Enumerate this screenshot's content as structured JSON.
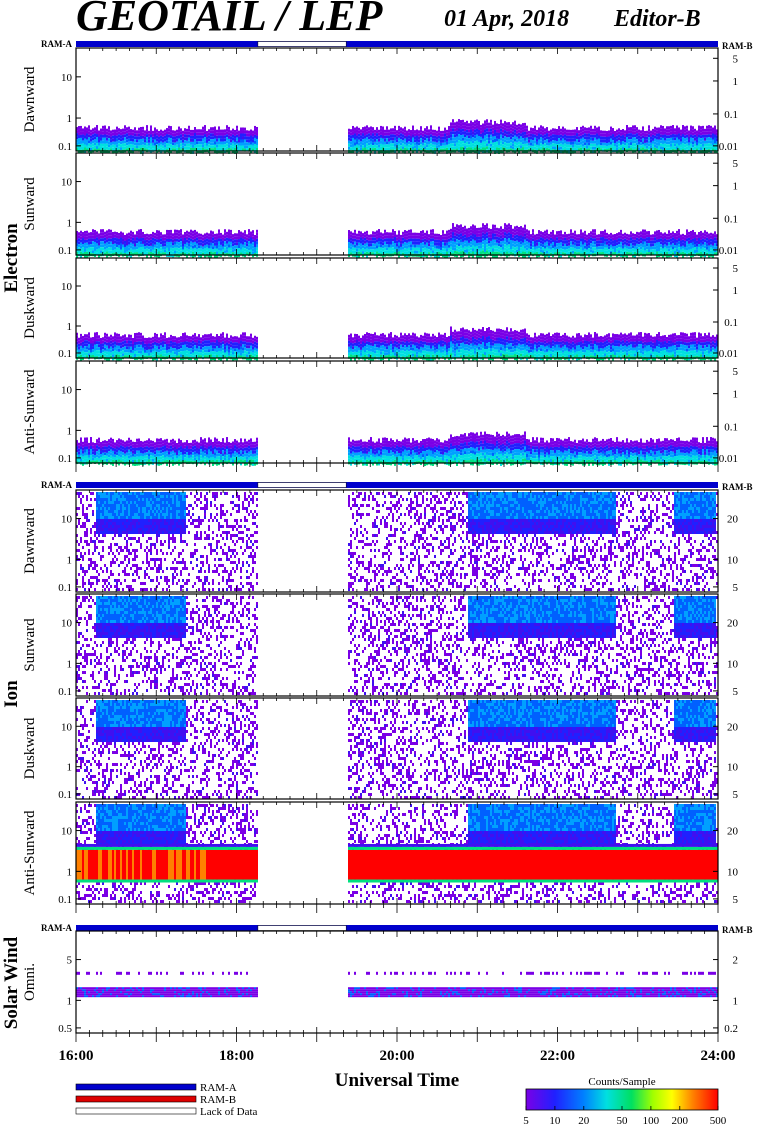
{
  "header": {
    "title": "GEOTAIL / LEP",
    "date": "01 Apr, 2018",
    "editor": "Editor-B"
  },
  "ram_labels": {
    "left": "RAM-A",
    "right": "RAM-B"
  },
  "x_axis": {
    "title": "Universal Time",
    "ticks": [
      "16:00",
      "18:00",
      "20:00",
      "22:00",
      "24:00"
    ]
  },
  "groups": [
    {
      "label": "Electron"
    },
    {
      "label": "Ion"
    },
    {
      "label": "Solar Wind"
    }
  ],
  "legend": {
    "ram_a": "RAM-A",
    "ram_b": "RAM-B",
    "lack": "Lack of Data",
    "colorbar_title": "Counts/Sample",
    "colorbar_ticks": [
      "5",
      "10",
      "20",
      "50",
      "100",
      "200",
      "500"
    ]
  },
  "colors": {
    "ram_a": "#0000cc",
    "ram_b": "#dd0000",
    "lack_fill": "#ffffff"
  },
  "chart_data": {
    "type": "heatmap",
    "time_range": [
      "16:00",
      "24:00"
    ],
    "data_gap": [
      "18:16",
      "19:22"
    ],
    "ram_state": "RAM-A",
    "panels": [
      {
        "group": "Electron",
        "name": "Dawnward",
        "left_ticks": [
          "10",
          "1",
          "0.1"
        ],
        "right_ticks": [
          "5",
          "1",
          "0.1",
          "0.01"
        ],
        "profile": "electron"
      },
      {
        "group": "Electron",
        "name": "Sunward",
        "left_ticks": [
          "10",
          "1",
          "0.1"
        ],
        "right_ticks": [
          "5",
          "1",
          "0.1",
          "0.01"
        ],
        "profile": "electron"
      },
      {
        "group": "Electron",
        "name": "Duskward",
        "left_ticks": [
          "10",
          "1",
          "0.1"
        ],
        "right_ticks": [
          "5",
          "1",
          "0.1",
          "0.01"
        ],
        "profile": "electron"
      },
      {
        "group": "Electron",
        "name": "Anti-Sunward",
        "left_ticks": [
          "10",
          "1",
          "0.1"
        ],
        "right_ticks": [
          "5",
          "1",
          "0.1",
          "0.01"
        ],
        "profile": "electron"
      },
      {
        "group": "Ion",
        "name": "Dawnward",
        "left_ticks": [
          "10",
          "1",
          "0.1"
        ],
        "right_ticks": [
          "20",
          "10",
          "5"
        ],
        "profile": "ion"
      },
      {
        "group": "Ion",
        "name": "Sunward",
        "left_ticks": [
          "10",
          "1",
          "0.1"
        ],
        "right_ticks": [
          "20",
          "10",
          "5"
        ],
        "profile": "ion"
      },
      {
        "group": "Ion",
        "name": "Duskward",
        "left_ticks": [
          "10",
          "1",
          "0.1"
        ],
        "right_ticks": [
          "20",
          "10",
          "5"
        ],
        "profile": "ion"
      },
      {
        "group": "Ion",
        "name": "Anti-Sunward",
        "left_ticks": [
          "10",
          "1",
          "0.1"
        ],
        "right_ticks": [
          "20",
          "10",
          "5"
        ],
        "profile": "ion_antisun"
      },
      {
        "group": "Solar Wind",
        "name": "Omni.",
        "left_ticks": [
          "5",
          "1",
          "0.5"
        ],
        "right_ticks": [
          "2",
          "1",
          "0.2"
        ],
        "profile": "solarwind"
      }
    ],
    "colorbar": {
      "label": "Counts/Sample",
      "min": 5,
      "max": 500,
      "scale": "log"
    }
  }
}
